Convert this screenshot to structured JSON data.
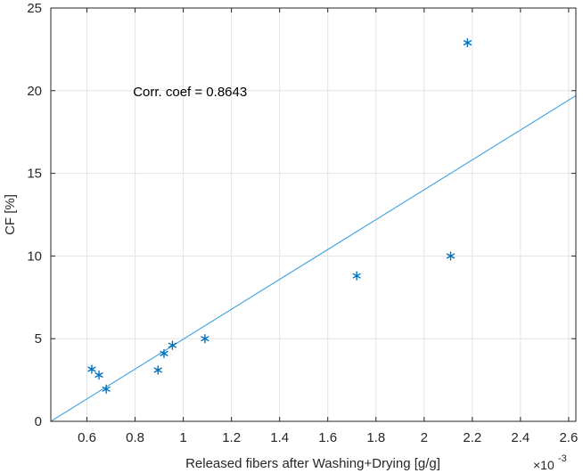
{
  "chart_data": {
    "type": "scatter",
    "xlabel": "Released fibers after Washing+Drying [g/g]",
    "ylabel": "CF [%]",
    "x_exponent_label": "×10",
    "x_exponent_power": "-3",
    "xlim": [
      0.45,
      2.63
    ],
    "ylim": [
      0,
      25
    ],
    "grid": true,
    "x_ticks": [
      0.6,
      0.8,
      1,
      1.2,
      1.4,
      1.6,
      1.8,
      2,
      2.2,
      2.4,
      2.6
    ],
    "x_tick_labels": [
      "0.6",
      "0.8",
      "1",
      "1.2",
      "1.4",
      "1.6",
      "1.8",
      "2",
      "2.2",
      "2.4",
      "2.6"
    ],
    "y_ticks": [
      0,
      5,
      10,
      15,
      20,
      25
    ],
    "y_tick_labels": [
      "0",
      "5",
      "10",
      "15",
      "20",
      "25"
    ],
    "series": [
      {
        "name": "data",
        "marker": "asterisk",
        "color": "#0072BD",
        "points": [
          {
            "x": 0.62,
            "y": 3.15
          },
          {
            "x": 0.65,
            "y": 2.8
          },
          {
            "x": 0.68,
            "y": 1.95
          },
          {
            "x": 0.895,
            "y": 3.1
          },
          {
            "x": 0.92,
            "y": 4.1
          },
          {
            "x": 0.955,
            "y": 4.6
          },
          {
            "x": 1.09,
            "y": 5.0
          },
          {
            "x": 1.72,
            "y": 8.8
          },
          {
            "x": 2.11,
            "y": 10.0
          },
          {
            "x": 2.18,
            "y": 22.9
          }
        ]
      }
    ],
    "fit_line": {
      "color": "#4DA6E0",
      "x": [
        0.45,
        2.63
      ],
      "y": [
        0.0,
        19.7
      ]
    },
    "annotation": {
      "text": "Corr. coef = 0.8643",
      "x": 0.98,
      "y": 20.0
    }
  }
}
